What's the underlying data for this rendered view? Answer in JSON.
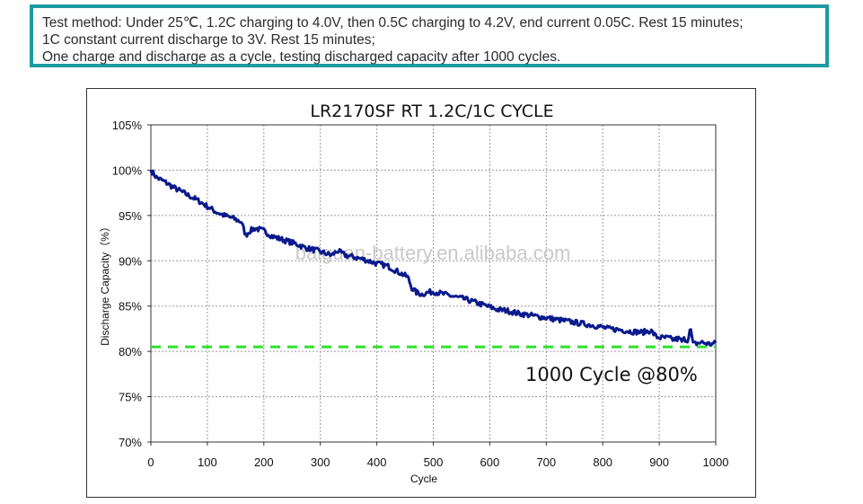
{
  "test_method": {
    "lines": [
      "Test method: Under 25℃, 1.2C charging to 4.0V, then 0.5C charging to 4.2V, end current 0.05C. Rest 15 minutes;",
      "1C constant current discharge to 3V. Rest 15 minutes;",
      "One charge and discharge as a cycle, testing discharged capacity after 1000 cycles."
    ]
  },
  "watermark": "baiguan-battery.en.alibaba.com",
  "colors": {
    "series_line": "#0a1a8c",
    "reference_line": "#2ee02e",
    "grid": "#9a9a9a",
    "box_border": "#1e9aa0"
  },
  "chart_data": {
    "type": "line",
    "title": "LR2170SF RT 1.2C/1C CYCLE",
    "xlabel": "Cycle",
    "ylabel": "Discharge Capacity（%）",
    "xlim": [
      0,
      1000
    ],
    "ylim": [
      70,
      105
    ],
    "x_ticks": [
      0,
      100,
      200,
      300,
      400,
      500,
      600,
      700,
      800,
      900,
      1000
    ],
    "x_tick_labels": [
      "0",
      "100",
      "200",
      "300",
      "400",
      "500",
      "600",
      "700",
      "800",
      "900",
      "1000"
    ],
    "y_ticks": [
      70,
      75,
      80,
      85,
      90,
      95,
      100,
      105
    ],
    "y_tick_labels": [
      "70%",
      "75%",
      "80%",
      "85%",
      "90%",
      "95%",
      "100%",
      "105%"
    ],
    "grid": true,
    "series": [
      {
        "x": [
          0,
          10,
          25,
          40,
          55,
          70,
          85,
          100,
          115,
          130,
          145,
          160,
          168,
          175,
          185,
          200,
          215,
          230,
          245,
          260,
          275,
          290,
          305,
          320,
          330,
          345,
          360,
          380,
          400,
          420,
          440,
          455,
          462,
          470,
          480,
          490,
          500,
          520,
          540,
          560,
          580,
          600,
          615,
          630,
          650,
          670,
          690,
          710,
          730,
          750,
          770,
          790,
          810,
          830,
          850,
          870,
          885,
          895,
          905,
          915,
          925,
          935,
          940,
          945,
          950,
          955,
          960,
          975,
          990,
          1000
        ],
        "y": [
          100.0,
          99.2,
          98.7,
          98.1,
          97.6,
          97.1,
          96.6,
          96.0,
          95.4,
          95.0,
          94.7,
          94.3,
          92.8,
          93.3,
          93.6,
          93.3,
          92.7,
          92.4,
          92.1,
          91.8,
          91.4,
          91.2,
          90.9,
          90.6,
          91.1,
          90.6,
          90.4,
          90.1,
          89.7,
          89.4,
          88.7,
          88.2,
          87.0,
          86.5,
          86.3,
          86.5,
          86.6,
          86.3,
          86.0,
          85.7,
          85.3,
          84.9,
          84.6,
          84.5,
          84.2,
          84.0,
          83.8,
          83.6,
          83.4,
          83.2,
          83.0,
          82.8,
          82.5,
          82.4,
          82.2,
          82.1,
          82.3,
          81.6,
          81.5,
          81.5,
          81.3,
          81.4,
          81.1,
          81.4,
          81.2,
          82.6,
          80.8,
          81.0,
          80.8,
          80.9
        ],
        "noise_amplitude": 0.3
      }
    ],
    "reference_line": {
      "y": 80.5,
      "style": "dashed"
    },
    "annotation": "1000 Cycle @80%"
  }
}
